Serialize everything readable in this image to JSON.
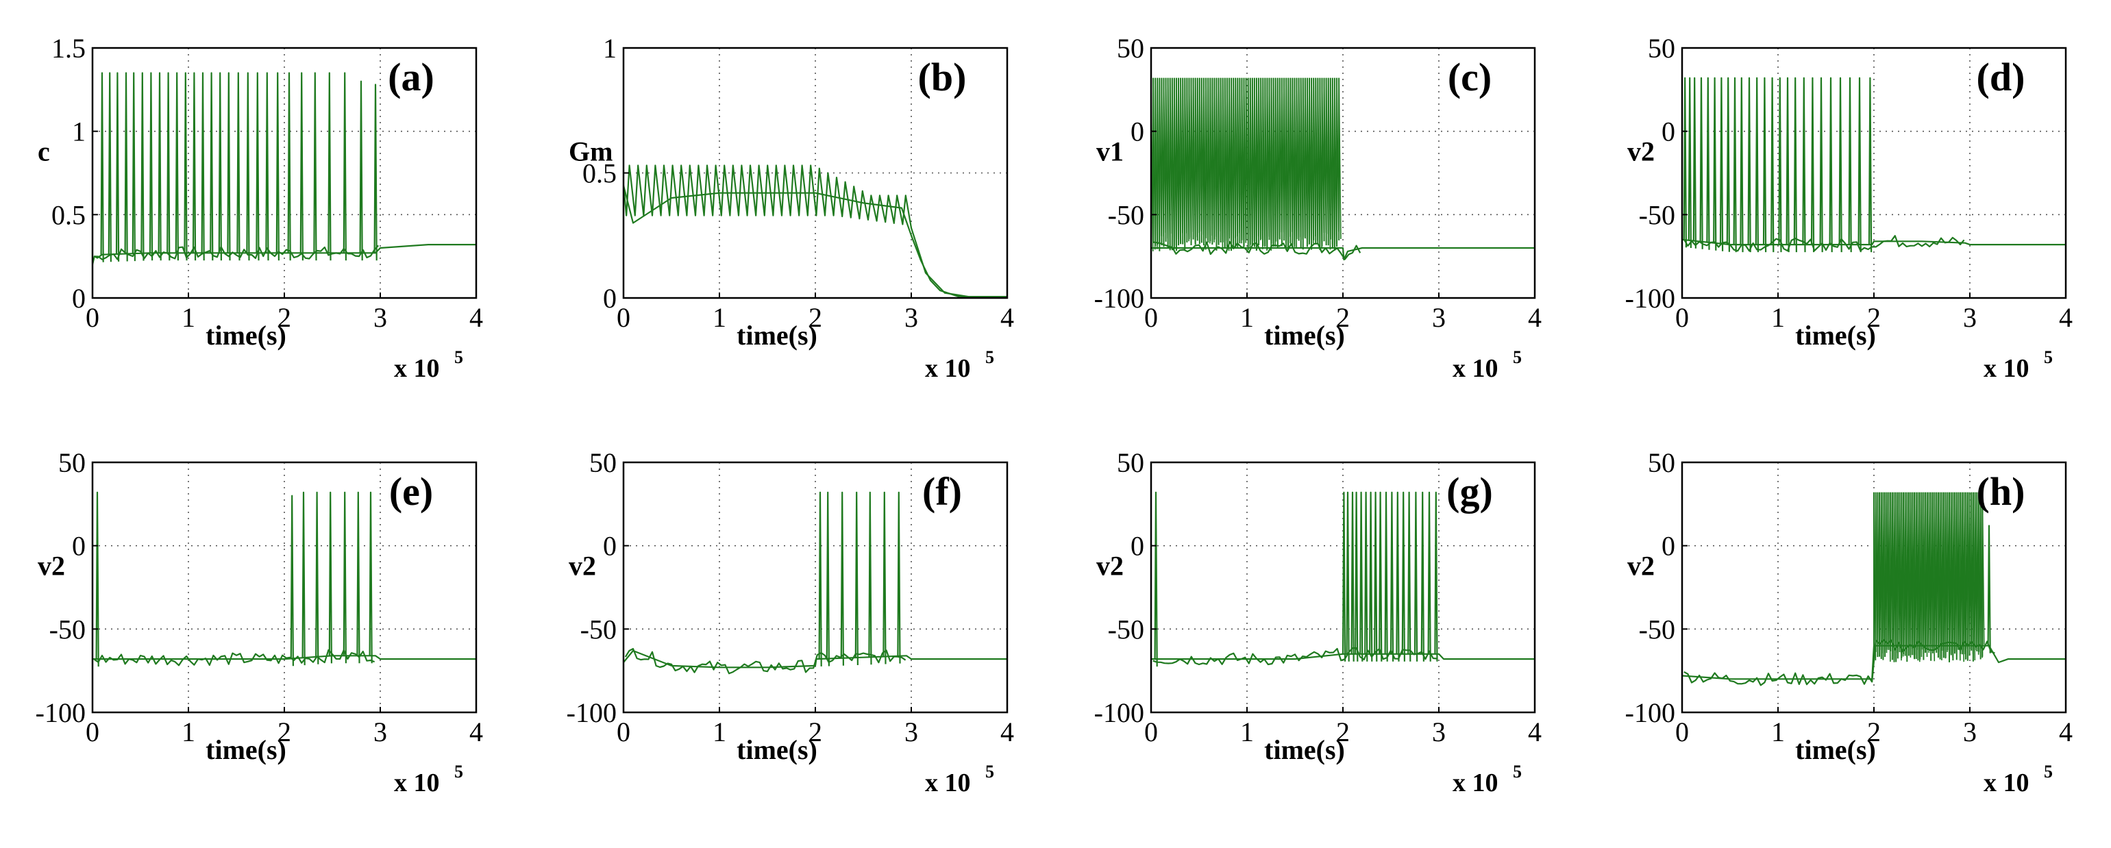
{
  "colors": {
    "trace": "#1f7a1f",
    "axis": "#000000"
  },
  "chart_data": [
    {
      "type": "line",
      "panel_label": "(a)",
      "ylabel": "c",
      "xlabel": "time(s)",
      "x_multiplier": "x 10",
      "x_exponent": "5",
      "xlim": [
        0,
        4
      ],
      "xticks": [
        "0",
        "1",
        "2",
        "3",
        "4"
      ],
      "ylim": [
        0,
        1.5
      ],
      "yticks": [
        "0",
        "0.5",
        "1",
        "1.5"
      ],
      "series": [
        {
          "name": "c",
          "x": [
            0,
            0.02,
            0.05,
            0.1,
            0.6,
            1.0,
            1.5,
            2.0,
            2.5,
            2.95,
            3.0,
            3.5,
            4.0
          ],
          "y": [
            0.2,
            0.25,
            0.24,
            0.26,
            0.27,
            0.27,
            0.27,
            0.27,
            0.27,
            0.27,
            0.3,
            0.32,
            0.32
          ]
        }
      ],
      "spikes": {
        "x": [
          0.1,
          0.18,
          0.26,
          0.35,
          0.43,
          0.52,
          0.61,
          0.7,
          0.79,
          0.88,
          0.97,
          1.06,
          1.15,
          1.24,
          1.33,
          1.42,
          1.52,
          1.62,
          1.72,
          1.82,
          1.93,
          2.05,
          2.18,
          2.32,
          2.47,
          2.63,
          2.8,
          2.95
        ],
        "peak": [
          1.35,
          1.35,
          1.35,
          1.35,
          1.35,
          1.35,
          1.35,
          1.35,
          1.35,
          1.35,
          1.35,
          1.35,
          1.35,
          1.35,
          1.35,
          1.35,
          1.35,
          1.35,
          1.35,
          1.35,
          1.35,
          1.35,
          1.35,
          1.35,
          1.35,
          1.35,
          1.3,
          1.28
        ]
      }
    },
    {
      "type": "line",
      "panel_label": "(b)",
      "ylabel": "Gm",
      "xlabel": "time(s)",
      "x_multiplier": "x 10",
      "x_exponent": "5",
      "xlim": [
        0,
        4
      ],
      "xticks": [
        "0",
        "1",
        "2",
        "3",
        "4"
      ],
      "ylim": [
        0,
        1
      ],
      "yticks": [
        "0",
        "0.5",
        "1"
      ],
      "series": [
        {
          "name": "Gm",
          "x": [
            0,
            0.1,
            0.5,
            1.0,
            1.5,
            2.0,
            2.5,
            2.9,
            3.0,
            3.1,
            3.2,
            3.3,
            3.5,
            4.0
          ],
          "y": [
            0.45,
            0.3,
            0.4,
            0.42,
            0.42,
            0.42,
            0.38,
            0.36,
            0.25,
            0.15,
            0.07,
            0.03,
            0.005,
            0.005
          ]
        }
      ],
      "oscillation": {
        "period": 0.09,
        "upper": 0.53,
        "lower": 0.33,
        "until": 2.95
      }
    },
    {
      "type": "line",
      "panel_label": "(c)",
      "ylabel": "v1",
      "xlabel": "time(s)",
      "x_multiplier": "x 10",
      "x_exponent": "5",
      "xlim": [
        0,
        4
      ],
      "xticks": [
        "0",
        "1",
        "2",
        "3",
        "4"
      ],
      "ylim": [
        -100,
        50
      ],
      "yticks": [
        "-100",
        "-50",
        "0",
        "50"
      ],
      "series": [
        {
          "name": "v1",
          "x": [
            0,
            0.5,
            1.0,
            1.5,
            2.0,
            2.01,
            2.05,
            2.2,
            3.0,
            4.0
          ],
          "y": [
            -70,
            -70,
            -70,
            -70,
            -70,
            -77,
            -72,
            -70,
            -70,
            -70
          ]
        }
      ],
      "spike_band": {
        "from": 0.0,
        "to": 1.98,
        "count": 90,
        "peak": 32,
        "trough": -72
      }
    },
    {
      "type": "line",
      "panel_label": "(d)",
      "ylabel": "v2",
      "xlabel": "time(s)",
      "x_multiplier": "x 10",
      "x_exponent": "5",
      "xlim": [
        0,
        4
      ],
      "xticks": [
        "0",
        "1",
        "2",
        "3",
        "4"
      ],
      "ylim": [
        -100,
        50
      ],
      "yticks": [
        "-100",
        "-50",
        "0",
        "50"
      ],
      "series": [
        {
          "name": "v2",
          "x": [
            0,
            0.5,
            1.0,
            1.5,
            1.98,
            2.0,
            2.5,
            2.95,
            3.0,
            4.0
          ],
          "y": [
            -65,
            -68,
            -68,
            -68,
            -68,
            -66,
            -66,
            -67,
            -68,
            -68
          ]
        }
      ],
      "spikes": {
        "x": [
          0.03,
          0.08,
          0.13,
          0.2,
          0.27,
          0.34,
          0.41,
          0.48,
          0.55,
          0.62,
          0.7,
          0.78,
          0.86,
          0.94,
          1.02,
          1.1,
          1.18,
          1.27,
          1.36,
          1.45,
          1.55,
          1.65,
          1.75,
          1.85,
          1.96
        ],
        "peak": [
          32,
          32,
          32,
          32,
          32,
          32,
          32,
          32,
          32,
          32,
          32,
          32,
          32,
          32,
          32,
          32,
          32,
          32,
          32,
          32,
          32,
          32,
          32,
          32,
          32
        ]
      }
    },
    {
      "type": "line",
      "panel_label": "(e)",
      "ylabel": "v2",
      "xlabel": "time(s)",
      "x_multiplier": "x 10",
      "x_exponent": "5",
      "xlim": [
        0,
        4
      ],
      "xticks": [
        "0",
        "1",
        "2",
        "3",
        "4"
      ],
      "ylim": [
        -100,
        50
      ],
      "yticks": [
        "-100",
        "-50",
        "0",
        "50"
      ],
      "series": [
        {
          "name": "v2",
          "x": [
            0,
            0.5,
            1.0,
            1.5,
            2.0,
            2.5,
            2.95,
            3.0,
            4.0
          ],
          "y": [
            -68,
            -68,
            -68,
            -68,
            -68,
            -66,
            -66,
            -68,
            -68
          ]
        }
      ],
      "spikes": {
        "x": [
          0.05,
          2.08,
          2.2,
          2.34,
          2.48,
          2.63,
          2.77,
          2.9
        ],
        "peak": [
          32,
          30,
          32,
          32,
          32,
          32,
          32,
          32
        ]
      }
    },
    {
      "type": "line",
      "panel_label": "(f)",
      "ylabel": "v2",
      "xlabel": "time(s)",
      "x_multiplier": "x 10",
      "x_exponent": "5",
      "xlim": [
        0,
        4
      ],
      "xticks": [
        "0",
        "1",
        "2",
        "3",
        "4"
      ],
      "ylim": [
        -100,
        50
      ],
      "yticks": [
        "-100",
        "-50",
        "0",
        "50"
      ],
      "series": [
        {
          "name": "v2",
          "x": [
            0,
            0.1,
            0.5,
            1.0,
            1.5,
            2.0,
            2.01,
            2.5,
            2.95,
            3.0,
            4.0
          ],
          "y": [
            -70,
            -63,
            -72,
            -73,
            -73,
            -72,
            -68,
            -67,
            -66,
            -68,
            -68
          ]
        }
      ],
      "spikes": {
        "x": [
          2.05,
          2.13,
          2.28,
          2.43,
          2.57,
          2.72,
          2.87
        ],
        "peak": [
          32,
          32,
          32,
          32,
          32,
          32,
          32
        ]
      }
    },
    {
      "type": "line",
      "panel_label": "(g)",
      "ylabel": "v2",
      "xlabel": "time(s)",
      "x_multiplier": "x 10",
      "x_exponent": "5",
      "xlim": [
        0,
        4
      ],
      "xticks": [
        "0",
        "1",
        "2",
        "3",
        "4"
      ],
      "ylim": [
        -100,
        50
      ],
      "yticks": [
        "-100",
        "-50",
        "0",
        "50"
      ],
      "series": [
        {
          "name": "v2",
          "x": [
            0,
            0.5,
            1.0,
            1.5,
            2.0,
            2.5,
            3.0,
            3.05,
            4.0
          ],
          "y": [
            -68,
            -68,
            -68,
            -68,
            -65,
            -65,
            -65,
            -68,
            -68
          ]
        }
      ],
      "spikes": {
        "x": [
          0.05,
          2.01,
          2.05,
          2.1,
          2.14,
          2.19,
          2.24,
          2.29,
          2.34,
          2.39,
          2.45,
          2.51,
          2.57,
          2.63,
          2.69,
          2.76,
          2.83,
          2.9,
          2.97
        ],
        "peak": [
          32,
          32,
          32,
          32,
          32,
          32,
          32,
          32,
          32,
          32,
          32,
          32,
          32,
          32,
          32,
          32,
          32,
          32,
          32
        ]
      }
    },
    {
      "type": "line",
      "panel_label": "(h)",
      "ylabel": "v2",
      "xlabel": "time(s)",
      "x_multiplier": "x 10",
      "x_exponent": "5",
      "xlim": [
        0,
        4
      ],
      "xticks": [
        "0",
        "1",
        "2",
        "3",
        "4"
      ],
      "ylim": [
        -100,
        50
      ],
      "yticks": [
        "-100",
        "-50",
        "0",
        "50"
      ],
      "series": [
        {
          "name": "v2",
          "x": [
            0,
            0.5,
            1.0,
            1.5,
            1.98,
            2.0,
            2.5,
            3.0,
            3.2,
            3.3,
            3.4,
            4.0
          ],
          "y": [
            -78,
            -80,
            -80,
            -80,
            -80,
            -60,
            -60,
            -60,
            -60,
            -70,
            -68,
            -68
          ]
        }
      ],
      "spike_band": {
        "from": 2.0,
        "to": 3.15,
        "count": 60,
        "peak": 32,
        "trough": -70
      },
      "spikes": {
        "x": [
          3.2
        ],
        "peak": [
          12
        ]
      }
    }
  ]
}
